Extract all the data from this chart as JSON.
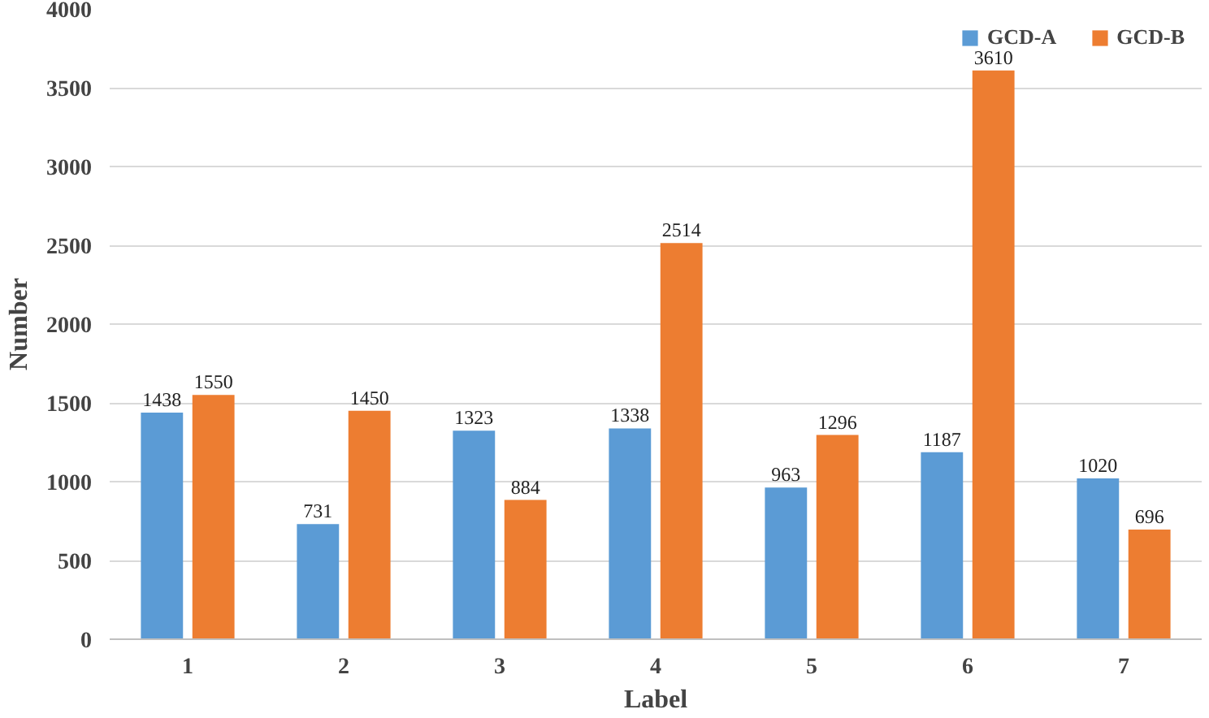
{
  "chart_data": {
    "type": "bar",
    "xlabel": "Label",
    "ylabel": "Number",
    "categories": [
      "1",
      "2",
      "3",
      "4",
      "5",
      "6",
      "7"
    ],
    "series": [
      {
        "name": "GCD-A",
        "color": "#5b9bd5",
        "values": [
          1438,
          731,
          1323,
          1338,
          963,
          1187,
          1020
        ]
      },
      {
        "name": "GCD-B",
        "color": "#ed7d31",
        "values": [
          1550,
          1450,
          884,
          2514,
          1296,
          3610,
          696
        ]
      }
    ],
    "ylim": [
      0,
      4000
    ],
    "yticks": [
      0,
      500,
      1000,
      1500,
      2000,
      2500,
      3000,
      3500,
      4000
    ],
    "grid": "y",
    "legend": "top right",
    "data_labels": true
  }
}
